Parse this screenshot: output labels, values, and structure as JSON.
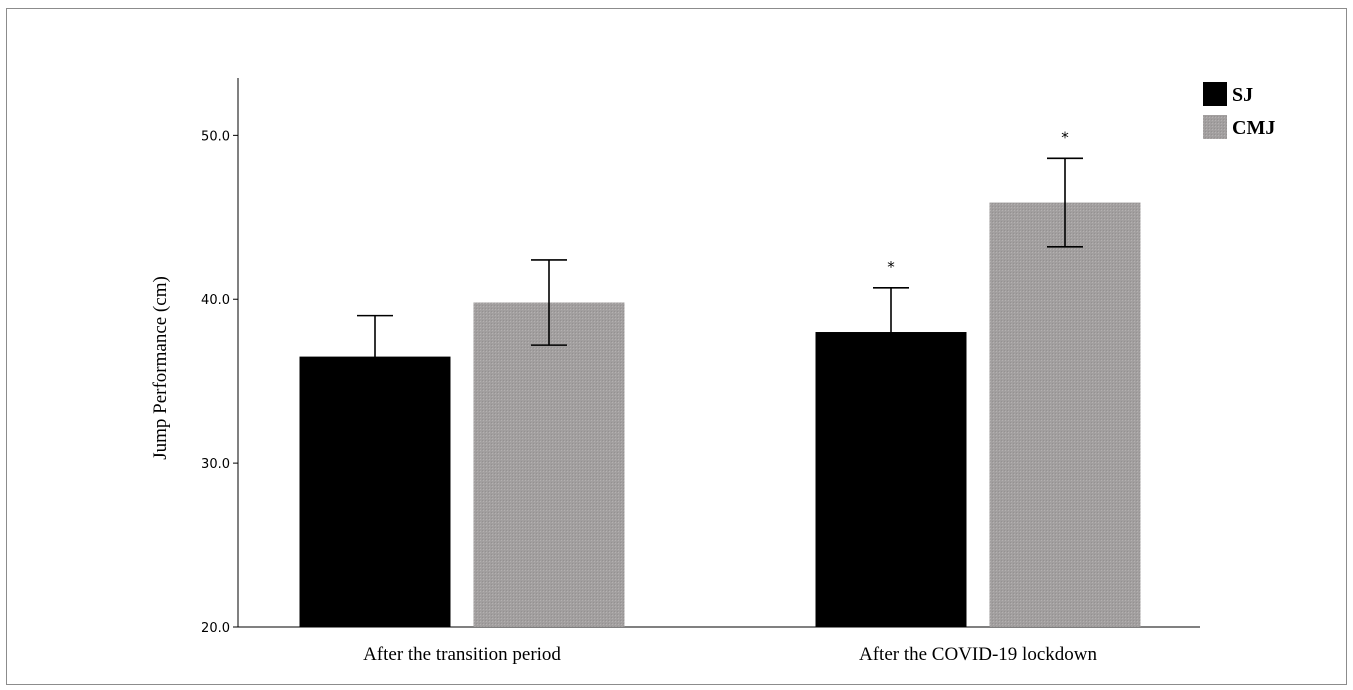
{
  "chart_data": {
    "type": "bar",
    "title": "",
    "xlabel": "",
    "ylabel": "Jump Performance (cm)",
    "ylim": [
      20,
      53.5
    ],
    "yticks": [
      20,
      30,
      40,
      50
    ],
    "ytick_labels": [
      "20.0",
      "30.0",
      "40.0",
      "50.0"
    ],
    "categories": [
      "After the transition period",
      "After the COVID-19 lockdown"
    ],
    "series": [
      {
        "name": "SJ",
        "color": "#000000",
        "values": [
          36.5,
          38.0
        ],
        "error": [
          2.5,
          2.7
        ],
        "significance": [
          "",
          "*"
        ]
      },
      {
        "name": "CMJ",
        "color": "#a29f9f",
        "values": [
          39.8,
          45.9
        ],
        "error": [
          2.6,
          2.7
        ],
        "significance": [
          "",
          "*"
        ]
      }
    ],
    "grid": false,
    "legend_position": "top-right"
  }
}
